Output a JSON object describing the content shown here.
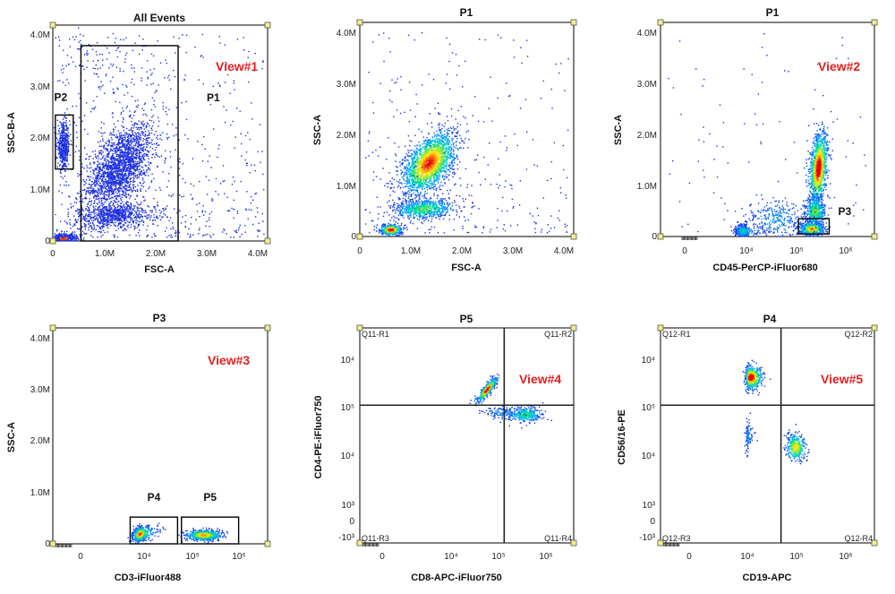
{
  "chart_data": [
    {
      "type": "scatter",
      "title": "All Events",
      "xlabel": "FSC-A",
      "ylabel": "SSC-B-A",
      "x_ticks": [
        "0",
        "1.0M",
        "2.0M",
        "3.0M",
        "4.0M"
      ],
      "y_ticks": [
        "0",
        "1.0M",
        "2.0M",
        "3.0M",
        "4.0M"
      ],
      "xlim": [
        0,
        4.2
      ],
      "ylim": [
        0,
        4.2
      ],
      "annotation": "View#1",
      "gates": [
        {
          "label": "P2",
          "x": [
            0.05,
            0.4
          ],
          "y": [
            1.4,
            2.45
          ]
        },
        {
          "label": "P1",
          "x": [
            0.55,
            2.45
          ],
          "y": [
            0,
            3.8
          ]
        }
      ],
      "populations": [
        {
          "x": 1.3,
          "y": 1.45,
          "sx": 0.32,
          "sy": 0.42,
          "rho": 0.5,
          "n": 2000,
          "peak": 0.7
        },
        {
          "x": 1.2,
          "y": 0.5,
          "sx": 0.42,
          "sy": 0.12,
          "rho": 0.2,
          "n": 700,
          "peak": 0.5
        },
        {
          "x": 0.2,
          "y": 1.85,
          "sx": 0.06,
          "sy": 0.22,
          "rho": 0,
          "n": 450,
          "peak": 0.5
        },
        {
          "x": 0.2,
          "y": 0.06,
          "sx": 0.15,
          "sy": 0.05,
          "rho": 0,
          "n": 400,
          "peak": 1.0
        },
        {
          "x": 1.0,
          "y": 3.5,
          "sx": 0.5,
          "sy": 0.5,
          "rho": 0,
          "n": 120,
          "peak": 0.2
        }
      ],
      "scatter_noise": 600
    },
    {
      "type": "scatter",
      "title": "P1",
      "xlabel": "FSC-A",
      "ylabel": "SSC-A",
      "x_ticks": [
        "0",
        "1.0M",
        "2.0M",
        "3.0M",
        "4.0M"
      ],
      "y_ticks": [
        "0",
        "1.0M",
        "2.0M",
        "3.0M",
        "4.0M"
      ],
      "xlim": [
        0,
        4.2
      ],
      "ylim": [
        0,
        4.2
      ],
      "populations": [
        {
          "x": 1.35,
          "y": 1.45,
          "sx": 0.26,
          "sy": 0.3,
          "rho": 0.5,
          "n": 2000,
          "peak": 1.0
        },
        {
          "x": 1.25,
          "y": 0.55,
          "sx": 0.3,
          "sy": 0.1,
          "rho": 0.2,
          "n": 700,
          "peak": 0.55
        },
        {
          "x": 0.6,
          "y": 0.14,
          "sx": 0.1,
          "sy": 0.05,
          "rho": 0,
          "n": 500,
          "peak": 1.1
        }
      ],
      "scatter_noise": 300
    },
    {
      "type": "scatter",
      "title": "P1",
      "xlabel": "CD45-PerCP-iFluor680",
      "ylabel": "SSC-A",
      "x_ticks": [
        "0",
        "10⁴",
        "10⁵",
        "10⁶"
      ],
      "y_ticks": [
        "0",
        "1.0M",
        "2.0M",
        "3.0M",
        "4.0M"
      ],
      "x_scale": "biexponential",
      "ylim": [
        0,
        4.2
      ],
      "annotation": "View#2",
      "gates": [
        {
          "label": "P3",
          "x": [
            110000,
            450000
          ],
          "y": [
            0.05,
            0.35
          ]
        }
      ],
      "populations": [
        {
          "x": 270000,
          "y": 1.35,
          "sx": 0.09,
          "sy": 0.35,
          "rho": 0.3,
          "n": 1200,
          "peak": 1.1
        },
        {
          "x": 230000,
          "y": 0.5,
          "sx": 0.1,
          "sy": 0.15,
          "rho": 0,
          "n": 500,
          "peak": 0.6
        },
        {
          "x": 200000,
          "y": 0.16,
          "sx": 0.12,
          "sy": 0.06,
          "rho": 0,
          "n": 600,
          "peak": 0.9
        },
        {
          "x": 6000,
          "y": 0.12,
          "sx": 0.25,
          "sy": 0.06,
          "rho": 0,
          "n": 400,
          "peak": 0.4
        },
        {
          "x": 40000,
          "y": 0.35,
          "sx": 0.3,
          "sy": 0.2,
          "rho": 0,
          "n": 300,
          "peak": 0.2
        }
      ],
      "scatter_noise": 100
    },
    {
      "type": "scatter",
      "title": "P3",
      "xlabel": "CD3-iFluor488",
      "ylabel": "SSC-A",
      "x_ticks": [
        "0",
        "10⁴",
        "10⁵",
        "10⁶"
      ],
      "y_ticks": [
        "0",
        "1.0M",
        "2.0M",
        "3.0M",
        "4.0M"
      ],
      "x_scale": "biexponential",
      "ylim": [
        0,
        4.2
      ],
      "annotation": "View#3",
      "gates": [
        {
          "label": "P4",
          "x": [
            1500,
            50000
          ],
          "y": [
            0.0,
            0.52
          ]
        },
        {
          "label": "P5",
          "x": [
            60000,
            950000
          ],
          "y": [
            0.0,
            0.52
          ]
        }
      ],
      "populations": [
        {
          "x": 6000,
          "y": 0.2,
          "sx": 0.22,
          "sy": 0.07,
          "rho": 0.3,
          "n": 700,
          "peak": 1.0
        },
        {
          "x": 170000,
          "y": 0.18,
          "sx": 0.18,
          "sy": 0.05,
          "rho": 0,
          "n": 600,
          "peak": 0.9
        }
      ],
      "scatter_noise": 0
    },
    {
      "type": "scatter",
      "title": "P5",
      "xlabel": "CD8-APC-iFluor750",
      "ylabel": "CD4-PE-iFluor750",
      "x_ticks": [
        "0",
        "10⁴",
        "10⁵",
        "10⁶"
      ],
      "y_ticks": [
        "-10³",
        "0",
        "10³",
        "10⁴",
        "10⁵",
        "10⁴"
      ],
      "x_scale": "biexponential",
      "y_scale": "biexponential",
      "annotation": "View#4",
      "quadrants": {
        "x": 130000,
        "y": 130000,
        "labels": [
          "Q11-R1",
          "Q11-R2",
          "Q11-R3",
          "Q11-R4"
        ]
      },
      "populations": [
        {
          "x": 55000,
          "y": 280000,
          "sx": 0.1,
          "sy": 0.12,
          "rho": 0.85,
          "n": 500,
          "peak": 1.1
        },
        {
          "x": 350000,
          "y": 85000,
          "sx": 0.18,
          "sy": 0.08,
          "rho": 0,
          "n": 350,
          "peak": 0.5
        },
        {
          "x": 120000,
          "y": 90000,
          "sx": 0.2,
          "sy": 0.06,
          "rho": 0,
          "n": 120,
          "peak": 0.2
        }
      ],
      "scatter_noise": 0
    },
    {
      "type": "scatter",
      "title": "P4",
      "xlabel": "CD19-APC",
      "ylabel": "CD56/16-PE",
      "x_ticks": [
        "0",
        "10⁴",
        "10⁵",
        "10⁶"
      ],
      "y_ticks": [
        "-10³",
        "0",
        "10³",
        "10⁴",
        "10⁵",
        "10⁴"
      ],
      "x_scale": "biexponential",
      "y_scale": "biexponential",
      "annotation": "View#5",
      "quadrants": {
        "x": 48000,
        "y": 130000,
        "labels": [
          "Q12-R1",
          "Q12-R2",
          "Q12-R3",
          "Q12-R4"
        ]
      },
      "populations": [
        {
          "x": 11000,
          "y": 500000,
          "sx": 0.12,
          "sy": 0.12,
          "rho": 0,
          "n": 600,
          "peak": 1.1
        },
        {
          "x": 95000,
          "y": 18000,
          "sx": 0.1,
          "sy": 0.14,
          "rho": 0,
          "n": 350,
          "peak": 0.8
        },
        {
          "x": 9000,
          "y": 30000,
          "sx": 0.08,
          "sy": 0.16,
          "rho": 0.3,
          "n": 100,
          "peak": 0.2
        }
      ],
      "scatter_noise": 0
    }
  ]
}
